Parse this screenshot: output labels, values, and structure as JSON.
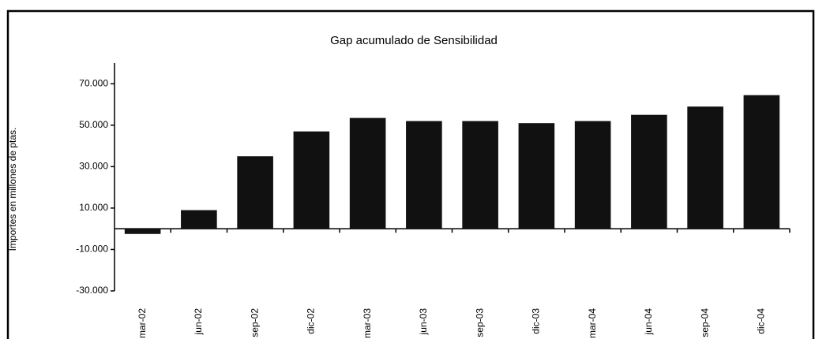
{
  "chart_data": {
    "type": "bar",
    "title": "Gap acumulado de Sensibilidad",
    "y_label": "Importes en millones de ptas.",
    "categories": [
      "mar-02",
      "jun-02",
      "sep-02",
      "dic-02",
      "mar-03",
      "jun-03",
      "sep-03",
      "dic-03",
      "mar-04",
      "jun-04",
      "sep-04",
      "dic-04"
    ],
    "values": [
      -2500,
      9000,
      35000,
      47000,
      53500,
      52000,
      52000,
      51000,
      52000,
      55000,
      59000,
      64500
    ],
    "color": "#111111",
    "ylim": [
      -30000,
      80000
    ],
    "yticks": [
      {
        "value": -30000,
        "label": "-30.000"
      },
      {
        "value": -10000,
        "label": "-10.000"
      },
      {
        "value": 10000,
        "label": "10.000"
      },
      {
        "value": 30000,
        "label": "30.000"
      },
      {
        "value": 50000,
        "label": "50.000"
      },
      {
        "value": 70000,
        "label": "70.000"
      }
    ],
    "grid": false
  }
}
